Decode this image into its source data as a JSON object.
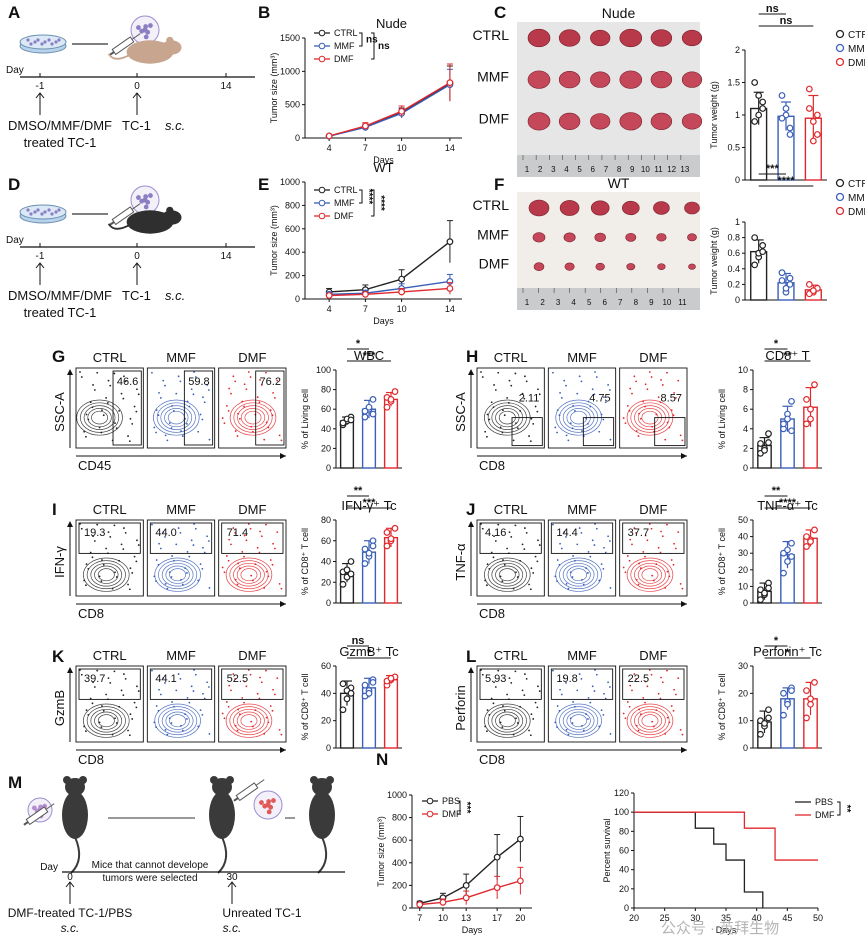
{
  "colors": {
    "ctrl": "#222222",
    "mmf": "#3a5fb8",
    "dmf": "#e0282d",
    "pbs": "#222222"
  },
  "groups": [
    "CTRL",
    "MMF",
    "DMF"
  ],
  "panel_letters": [
    "A",
    "B",
    "C",
    "D",
    "E",
    "F",
    "G",
    "H",
    "I",
    "J",
    "K",
    "L",
    "M",
    "N"
  ],
  "schematic": {
    "day": "Day",
    "ticks": [
      "-1",
      "0",
      "14"
    ],
    "pretreat": "DMSO/MMF/DMF",
    "treated": "treated TC-1",
    "inoc": "TC-1",
    "sc": "s.c."
  },
  "schematic_m": {
    "day": "Day",
    "t0": "0",
    "t30": "30",
    "note1": "Mice that cannot develope",
    "note2": "tumors were selected",
    "left_label": "DMF-treated TC-1/PBS",
    "right_label": "Unreated TC-1",
    "sc": "s.c."
  },
  "tumor_photos": [
    {
      "title": "Nude",
      "rows": [
        "CTRL",
        "MMF",
        "DMF"
      ],
      "ruler": [
        "1",
        "2",
        "3",
        "4",
        "5",
        "6",
        "7",
        "8",
        "9",
        "10",
        "11",
        "12",
        "13"
      ]
    },
    {
      "title": "WT",
      "rows": [
        "CTRL",
        "MMF",
        "DMF"
      ],
      "ruler": [
        "1",
        "2",
        "3",
        "4",
        "5",
        "6",
        "7",
        "8",
        "9",
        "10",
        "11"
      ]
    }
  ],
  "flow_panels": [
    {
      "letter": "G",
      "y_axis": "SSC-A",
      "x_axis": "CD45",
      "values": [
        "46.6",
        "59.8",
        "76.2"
      ],
      "gate": "right"
    },
    {
      "letter": "H",
      "y_axis": "SSC-A",
      "x_axis": "CD8",
      "values": [
        "2.11",
        "4.75",
        "8.57"
      ],
      "gate": "bottom-right"
    },
    {
      "letter": "I",
      "y_axis": "IFN-γ",
      "x_axis": "CD8",
      "values": [
        "19.3",
        "44.0",
        "71.4"
      ],
      "gate": "top"
    },
    {
      "letter": "J",
      "y_axis": "TNF-α",
      "x_axis": "CD8",
      "values": [
        "4.16",
        "14.4",
        "37.7"
      ],
      "gate": "top"
    },
    {
      "letter": "K",
      "y_axis": "GzmB",
      "x_axis": "CD8",
      "values": [
        "39.7",
        "44.1",
        "52.5"
      ],
      "gate": "top"
    },
    {
      "letter": "L",
      "y_axis": "Perforin",
      "x_axis": "CD8",
      "values": [
        "5.93",
        "19.8",
        "22.5"
      ],
      "gate": "top"
    }
  ],
  "watermark": "公众号 · 英拜生物",
  "chart_data": [
    {
      "id": "B",
      "type": "line",
      "title": "Nude",
      "xlabel": "Days",
      "ylabel": "Tumor size (mm³)",
      "x": [
        4,
        7,
        10,
        14
      ],
      "xlim": [
        2,
        15
      ],
      "ylim": [
        0,
        1500
      ],
      "yticks": [
        0,
        500,
        1000,
        1500
      ],
      "series": [
        {
          "name": "CTRL",
          "values": [
            30,
            170,
            380,
            820
          ],
          "err": [
            10,
            40,
            70,
            260
          ]
        },
        {
          "name": "MMF",
          "values": [
            28,
            160,
            370,
            800
          ],
          "err": [
            10,
            40,
            70,
            230
          ]
        },
        {
          "name": "DMF",
          "values": [
            30,
            180,
            400,
            830
          ],
          "err": [
            12,
            50,
            80,
            280
          ]
        }
      ],
      "significance": [
        "ns",
        "ns"
      ]
    },
    {
      "id": "C",
      "type": "bar",
      "ylabel": "Tumor weight (g)",
      "categories": [
        "CTRL",
        "MMF",
        "DMF"
      ],
      "ylim": [
        0,
        2.0
      ],
      "yticks": [
        0,
        0.5,
        1.0,
        1.5,
        2.0
      ],
      "values": [
        1.1,
        0.98,
        0.95
      ],
      "err": [
        0.25,
        0.22,
        0.35
      ],
      "points": [
        [
          1.5,
          1.3,
          1.1,
          0.9,
          1.0,
          1.2
        ],
        [
          1.3,
          1.0,
          0.8,
          0.95,
          1.1,
          0.7
        ],
        [
          1.4,
          0.9,
          0.7,
          1.1,
          0.6,
          1.0
        ]
      ],
      "significance": [
        "ns",
        "ns"
      ]
    },
    {
      "id": "E",
      "type": "line",
      "title": "WT",
      "xlabel": "Days",
      "ylabel": "Tumor size (mm³)",
      "x": [
        4,
        7,
        10,
        14
      ],
      "xlim": [
        2,
        15
      ],
      "ylim": [
        0,
        1000
      ],
      "yticks": [
        0,
        200,
        400,
        600,
        800,
        1000
      ],
      "series": [
        {
          "name": "CTRL",
          "values": [
            60,
            80,
            170,
            490
          ],
          "err": [
            30,
            40,
            80,
            180
          ]
        },
        {
          "name": "MMF",
          "values": [
            40,
            50,
            90,
            150
          ],
          "err": [
            20,
            25,
            40,
            60
          ]
        },
        {
          "name": "DMF",
          "values": [
            30,
            40,
            60,
            90
          ],
          "err": [
            15,
            20,
            30,
            50
          ]
        }
      ],
      "significance": [
        "****",
        "****"
      ]
    },
    {
      "id": "F",
      "type": "bar",
      "ylabel": "Tumor weight (g)",
      "categories": [
        "CTRL",
        "MMF",
        "DMF"
      ],
      "ylim": [
        0,
        1.0
      ],
      "yticks": [
        0,
        0.2,
        0.4,
        0.6,
        0.8,
        1.0
      ],
      "values": [
        0.62,
        0.22,
        0.13
      ],
      "err": [
        0.15,
        0.12,
        0.06
      ],
      "points": [
        [
          0.8,
          0.55,
          0.7,
          0.45,
          0.6,
          0.62
        ],
        [
          0.35,
          0.1,
          0.2,
          0.25,
          0.15,
          0.28
        ],
        [
          0.2,
          0.1,
          0.15,
          0.08,
          0.12
        ]
      ],
      "significance": [
        "***",
        "****"
      ]
    },
    {
      "id": "G",
      "type": "bar",
      "title": "WBC",
      "ylabel": "% of Living cell",
      "categories": [
        "CTRL",
        "MMF",
        "DMF"
      ],
      "ylim": [
        0,
        100
      ],
      "yticks": [
        0,
        20,
        40,
        60,
        80,
        100
      ],
      "values": [
        48,
        60,
        70
      ],
      "err": [
        4,
        9,
        7
      ],
      "points": [
        [
          44,
          48,
          52,
          46,
          50,
          49
        ],
        [
          52,
          60,
          70,
          58,
          62,
          55
        ],
        [
          62,
          68,
          78,
          72,
          70
        ]
      ],
      "significance": [
        "*",
        "***"
      ]
    },
    {
      "id": "H",
      "type": "bar",
      "title": "CD8⁺ T",
      "ylabel": "% of Living cell",
      "categories": [
        "CTRL",
        "MMF",
        "DMF"
      ],
      "ylim": [
        0,
        10
      ],
      "yticks": [
        0,
        2,
        4,
        6,
        8,
        10
      ],
      "values": [
        2.3,
        5.0,
        6.2
      ],
      "err": [
        0.8,
        1.3,
        2.0
      ],
      "points": [
        [
          1.5,
          2.0,
          3.5,
          2.5,
          1.8,
          2.6
        ],
        [
          4.0,
          5.5,
          6.8,
          4.5,
          5.0,
          3.8
        ],
        [
          4.5,
          6.0,
          8.5,
          7.0,
          5.0
        ]
      ],
      "significance": [
        "*",
        "**"
      ]
    },
    {
      "id": "I",
      "type": "bar",
      "title": "IFN-γ⁺ Tc",
      "ylabel": "% of CD8⁺ T cell",
      "categories": [
        "CTRL",
        "MMF",
        "DMF"
      ],
      "ylim": [
        0,
        80
      ],
      "yticks": [
        0,
        20,
        40,
        60,
        80
      ],
      "values": [
        29,
        49,
        63
      ],
      "err": [
        9,
        11,
        9
      ],
      "points": [
        [
          18,
          25,
          40,
          30,
          32,
          28
        ],
        [
          38,
          45,
          60,
          52,
          48,
          55
        ],
        [
          55,
          60,
          72,
          68,
          62
        ]
      ],
      "significance": [
        "**",
        "***"
      ]
    },
    {
      "id": "J",
      "type": "bar",
      "title": "TNF-α⁺ Tc",
      "ylabel": "% of CD8⁺ T cell",
      "categories": [
        "CTRL",
        "MMF",
        "DMF"
      ],
      "ylim": [
        0,
        50
      ],
      "yticks": [
        0,
        10,
        20,
        30,
        40,
        50
      ],
      "values": [
        7,
        29,
        39
      ],
      "err": [
        5,
        8,
        5
      ],
      "points": [
        [
          2,
          5,
          12,
          8,
          6,
          9
        ],
        [
          18,
          25,
          36,
          30,
          32,
          28
        ],
        [
          34,
          38,
          44,
          40,
          37
        ]
      ],
      "significance": [
        "**",
        "****"
      ]
    },
    {
      "id": "K",
      "type": "bar",
      "title": "GzmB⁺ Tc",
      "ylabel": "% of CD8⁺ T cell",
      "categories": [
        "CTRL",
        "MMF",
        "DMF"
      ],
      "ylim": [
        0,
        60
      ],
      "yticks": [
        0,
        20,
        40,
        60
      ],
      "values": [
        40,
        44,
        50
      ],
      "err": [
        9,
        7,
        3
      ],
      "points": [
        [
          28,
          36,
          44,
          47,
          42,
          40
        ],
        [
          38,
          42,
          50,
          46,
          40,
          48
        ],
        [
          46,
          50,
          52,
          49,
          51
        ]
      ],
      "significance": [
        "ns",
        "*"
      ]
    },
    {
      "id": "L",
      "type": "bar",
      "title": "Perforin⁺ Tc",
      "ylabel": "% of CD8⁺ T cell",
      "categories": [
        "CTRL",
        "MMF",
        "DMF"
      ],
      "ylim": [
        0,
        30
      ],
      "yticks": [
        0,
        10,
        20,
        30
      ],
      "values": [
        9.5,
        18,
        18
      ],
      "err": [
        4,
        4,
        6
      ],
      "points": [
        [
          5,
          8,
          14,
          10,
          9,
          11
        ],
        [
          12,
          17,
          22,
          20,
          16,
          21
        ],
        [
          11,
          16,
          24,
          21,
          18
        ]
      ],
      "significance": [
        "*",
        "*"
      ]
    },
    {
      "id": "N1",
      "type": "line",
      "xlabel": "Days",
      "ylabel": "Tumor size (mm³)",
      "x": [
        7,
        10,
        13,
        17,
        20
      ],
      "xlim": [
        6,
        21.5
      ],
      "ylim": [
        0,
        1000
      ],
      "yticks": [
        0,
        200,
        400,
        600,
        800,
        1000
      ],
      "series": [
        {
          "name": "PBS",
          "values": [
            40,
            90,
            200,
            450,
            610
          ],
          "err": [
            20,
            40,
            100,
            200,
            200
          ]
        },
        {
          "name": "DMF",
          "values": [
            30,
            50,
            90,
            180,
            240
          ],
          "err": [
            15,
            30,
            60,
            100,
            120
          ]
        }
      ],
      "significance": [
        "***"
      ]
    },
    {
      "id": "N2",
      "type": "line",
      "xlabel": "Days",
      "ylabel": "Percent survival",
      "xlim": [
        20,
        50
      ],
      "ylim": [
        0,
        120
      ],
      "xticks": [
        20,
        25,
        30,
        35,
        40,
        45,
        50
      ],
      "yticks": [
        0,
        20,
        40,
        60,
        80,
        100,
        120
      ],
      "series": [
        {
          "name": "PBS",
          "steps": [
            [
              20,
              100
            ],
            [
              30,
              100
            ],
            [
              30,
              83.3
            ],
            [
              33,
              83.3
            ],
            [
              33,
              66.7
            ],
            [
              35,
              66.7
            ],
            [
              35,
              50
            ],
            [
              38,
              50
            ],
            [
              38,
              16.7
            ],
            [
              41,
              16.7
            ],
            [
              41,
              0
            ]
          ]
        },
        {
          "name": "DMF",
          "steps": [
            [
              20,
              100
            ],
            [
              38,
              100
            ],
            [
              38,
              83.3
            ],
            [
              43,
              83.3
            ],
            [
              43,
              50
            ],
            [
              50,
              50
            ]
          ]
        }
      ],
      "significance": [
        "**"
      ]
    }
  ]
}
